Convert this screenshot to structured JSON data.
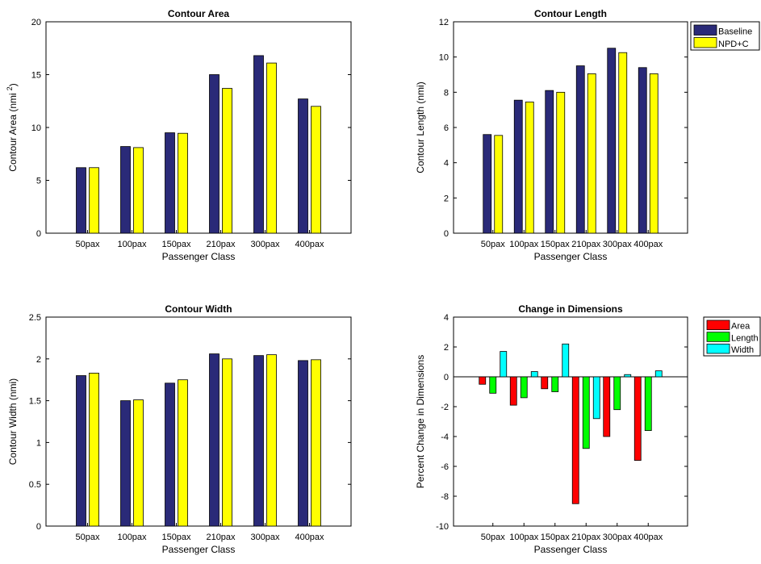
{
  "chart_data": [
    {
      "type": "bar",
      "title": "Contour Area",
      "xlabel": "Passenger Class",
      "ylabel": "Contour Area (nmi",
      "ylabel_sup": "2",
      "ylabel_suffix": ")",
      "categories": [
        "50pax",
        "100pax",
        "150pax",
        "210pax",
        "300pax",
        "400pax"
      ],
      "ylim": [
        0,
        20
      ],
      "yticks": [
        0,
        5,
        10,
        15,
        20
      ],
      "series": [
        {
          "values": [
            6.2,
            8.2,
            9.5,
            15.0,
            16.8,
            12.7
          ],
          "color": "#2a2a78"
        },
        {
          "values": [
            6.2,
            8.1,
            9.45,
            13.7,
            16.1,
            12.0
          ],
          "color": "#ffff00"
        }
      ]
    },
    {
      "type": "bar",
      "title": "Contour Length",
      "xlabel": "Passenger Class",
      "ylabel": "Contour Length (nmi)",
      "categories": [
        "50pax",
        "100pax",
        "150pax",
        "210pax",
        "300pax",
        "400pax"
      ],
      "ylim": [
        0,
        12
      ],
      "yticks": [
        0,
        2,
        4,
        6,
        8,
        10,
        12
      ],
      "legend": "outside-top-right",
      "series": [
        {
          "name": "Baseline",
          "values": [
            5.6,
            7.55,
            8.1,
            9.5,
            10.5,
            9.4
          ],
          "color": "#2a2a78"
        },
        {
          "name": "NPD+C",
          "values": [
            5.55,
            7.45,
            8.0,
            9.05,
            10.25,
            9.05
          ],
          "color": "#ffff00"
        }
      ]
    },
    {
      "type": "bar",
      "title": "Contour Width",
      "xlabel": "Passenger Class",
      "ylabel": "Contour Width (nmi)",
      "categories": [
        "50pax",
        "100pax",
        "150pax",
        "210pax",
        "300pax",
        "400pax"
      ],
      "ylim": [
        0,
        2.5
      ],
      "yticks": [
        "0",
        "0.5",
        "1",
        "1.5",
        "2",
        "2.5"
      ],
      "series": [
        {
          "values": [
            1.8,
            1.5,
            1.71,
            2.06,
            2.04,
            1.98
          ],
          "color": "#2a2a78"
        },
        {
          "values": [
            1.83,
            1.51,
            1.75,
            2.0,
            2.05,
            1.99
          ],
          "color": "#ffff00"
        }
      ]
    },
    {
      "type": "bar",
      "title": "Change in Dimensions",
      "xlabel": "Passenger Class",
      "ylabel": "Percent Change in Dimensions",
      "categories": [
        "50pax",
        "100pax",
        "150pax",
        "210pax",
        "300pax",
        "400pax"
      ],
      "ylim": [
        -10,
        4
      ],
      "yticks": [
        -10,
        -8,
        -6,
        -4,
        -2,
        0,
        2,
        4
      ],
      "zero_line": true,
      "legend": "outside-top-right",
      "series": [
        {
          "name": "Area",
          "values": [
            -0.5,
            -1.9,
            -0.8,
            -8.5,
            -4.0,
            -5.6
          ],
          "color": "#ff0000"
        },
        {
          "name": "Length",
          "values": [
            -1.1,
            -1.4,
            -1.0,
            -4.8,
            -2.2,
            -3.6
          ],
          "color": "#00ff00"
        },
        {
          "name": "Width",
          "values": [
            1.7,
            0.35,
            2.2,
            -2.8,
            0.15,
            0.4
          ],
          "color": "#00ffff"
        }
      ]
    }
  ]
}
